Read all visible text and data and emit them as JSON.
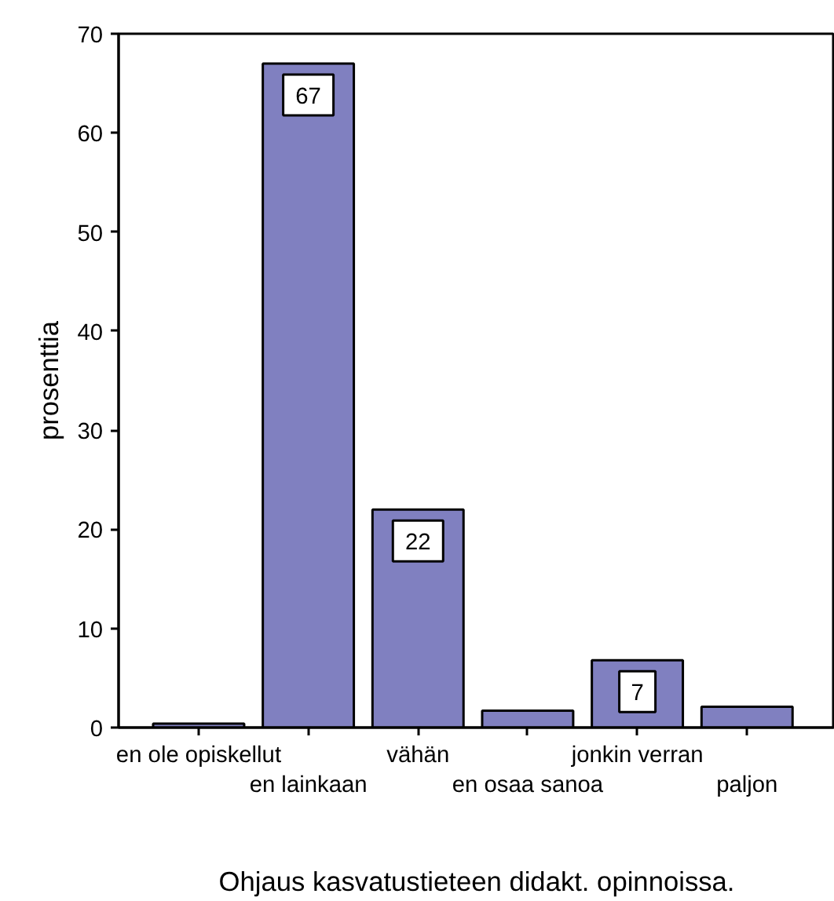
{
  "chart_data": {
    "type": "bar",
    "categories": [
      "en ole opiskellut",
      "en lainkaan",
      "vähän",
      "en osaa sanoa",
      "jonkin verran",
      "paljon"
    ],
    "values": [
      0.4,
      67,
      22,
      1.7,
      6.8,
      2.1
    ],
    "value_labels": [
      null,
      "67",
      "22",
      null,
      "7",
      null
    ],
    "color": "#8080c0",
    "xlabel": "Ohjaus kasvatustieteen didakt. opinnoissa.",
    "ylabel": "prosenttia",
    "ylim": [
      0,
      70
    ],
    "yticks": [
      0,
      10,
      20,
      30,
      40,
      50,
      60,
      70
    ],
    "grid": false
  }
}
